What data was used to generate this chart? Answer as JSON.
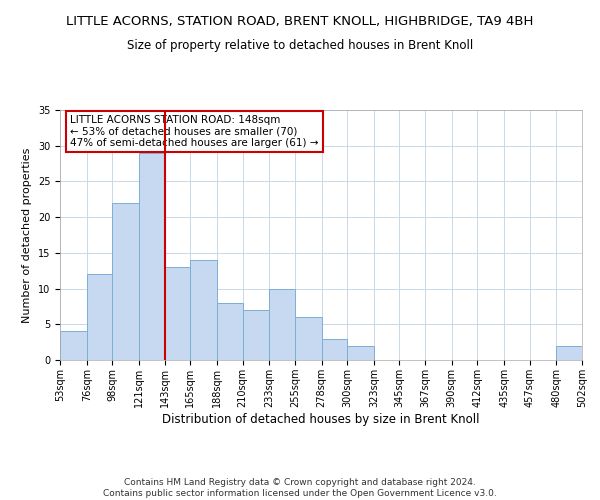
{
  "title": "LITTLE ACORNS, STATION ROAD, BRENT KNOLL, HIGHBRIDGE, TA9 4BH",
  "subtitle": "Size of property relative to detached houses in Brent Knoll",
  "xlabel": "Distribution of detached houses by size in Brent Knoll",
  "ylabel": "Number of detached properties",
  "bin_edges": [
    53,
    76,
    98,
    121,
    143,
    165,
    188,
    210,
    233,
    255,
    278,
    300,
    323,
    345,
    367,
    390,
    412,
    435,
    457,
    480,
    502
  ],
  "bin_labels": [
    "53sqm",
    "76sqm",
    "98sqm",
    "121sqm",
    "143sqm",
    "165sqm",
    "188sqm",
    "210sqm",
    "233sqm",
    "255sqm",
    "278sqm",
    "300sqm",
    "323sqm",
    "345sqm",
    "367sqm",
    "390sqm",
    "412sqm",
    "435sqm",
    "457sqm",
    "480sqm",
    "502sqm"
  ],
  "counts": [
    4,
    12,
    22,
    29,
    13,
    14,
    8,
    7,
    10,
    6,
    3,
    2,
    0,
    0,
    0,
    0,
    0,
    0,
    0,
    2
  ],
  "bar_color": "#c6d9f0",
  "bar_edge_color": "#7bafd4",
  "vline_x": 143,
  "vline_color": "#cc0000",
  "annotation_box_text": "LITTLE ACORNS STATION ROAD: 148sqm\n← 53% of detached houses are smaller (70)\n47% of semi-detached houses are larger (61) →",
  "annotation_box_facecolor": "#ffffff",
  "annotation_box_edgecolor": "#cc0000",
  "ylim": [
    0,
    35
  ],
  "yticks": [
    0,
    5,
    10,
    15,
    20,
    25,
    30,
    35
  ],
  "grid_color": "#c8d8e8",
  "background_color": "#ffffff",
  "footer_line1": "Contains HM Land Registry data © Crown copyright and database right 2024.",
  "footer_line2": "Contains public sector information licensed under the Open Government Licence v3.0.",
  "title_fontsize": 9.5,
  "subtitle_fontsize": 8.5,
  "xlabel_fontsize": 8.5,
  "ylabel_fontsize": 8,
  "tick_fontsize": 7,
  "annotation_fontsize": 7.5,
  "footer_fontsize": 6.5
}
